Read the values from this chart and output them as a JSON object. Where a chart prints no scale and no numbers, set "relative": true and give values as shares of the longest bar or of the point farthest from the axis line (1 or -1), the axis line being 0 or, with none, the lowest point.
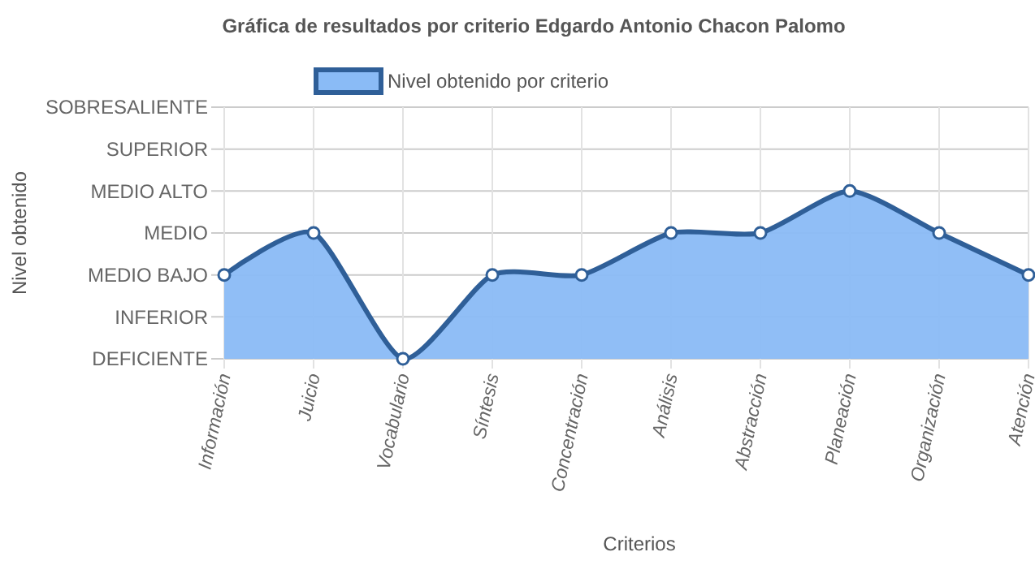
{
  "chart_data": {
    "type": "area",
    "title": "Gráfica de resultados por criterio Edgardo Antonio Chacon Palomo",
    "xlabel": "Criterios",
    "categories": [
      "Información",
      "Juicio",
      "Vocabulario",
      "Síntesis",
      "Concentración",
      "Análisis",
      "Abstracción",
      "Planeación",
      "Organización",
      "Atención"
    ],
    "relative": true,
    "annotations": [
      "DEFICIENTE",
      "INFERIOR",
      "MEDIO BAJO",
      "MEDIO",
      "MEDIO ALTO",
      "SUPERIOR",
      "SOBRESALIENTE",
      "Nivel obtenido"
    ],
    "series": [
      {
        "name": "Nivel obtenido por criterio",
        "color": "#2f5f98",
        "values": [
          0.5,
          0.75,
          0,
          0.5,
          0.5,
          0.75,
          0.75,
          1,
          0.75,
          0.5
        ]
      }
    ],
    "grid": true,
    "legend": "top",
    "marker": "circle"
  }
}
